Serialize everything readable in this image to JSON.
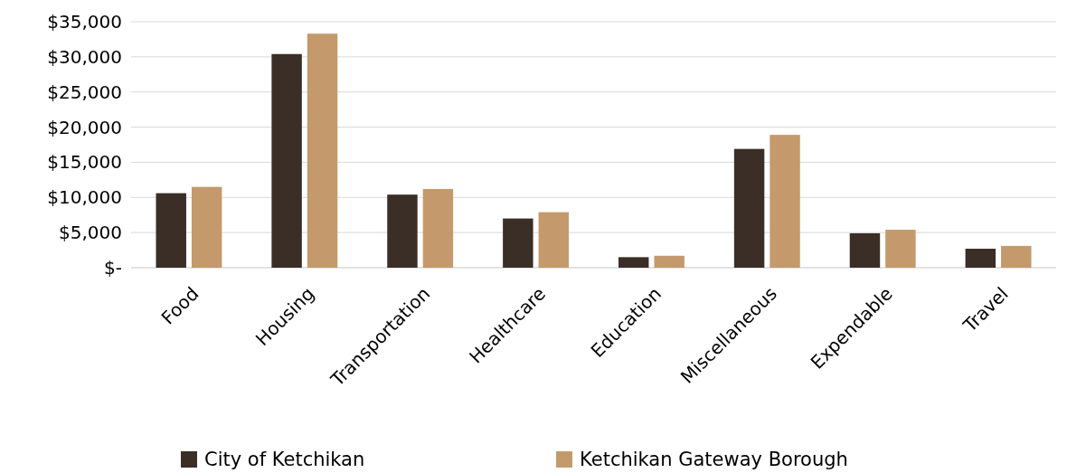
{
  "chart_data": {
    "type": "bar",
    "categories": [
      "Food",
      "Housing",
      "Transportation",
      "Healthcare",
      "Education",
      "Miscellaneous",
      "Expendable",
      "Travel"
    ],
    "series": [
      {
        "name": "City of Ketchikan",
        "color": "#3a2e27",
        "values": [
          10600,
          30400,
          10400,
          7000,
          1500,
          16900,
          4900,
          2700
        ]
      },
      {
        "name": "Ketchikan Gateway Borough",
        "color": "#c49a6c",
        "values": [
          11500,
          33300,
          11200,
          7900,
          1700,
          18900,
          5400,
          3100
        ]
      }
    ],
    "ylim": [
      0,
      35000
    ],
    "yticks": [
      {
        "value": 0,
        "label": "$-"
      },
      {
        "value": 5000,
        "label": "$5,000"
      },
      {
        "value": 10000,
        "label": "$10,000"
      },
      {
        "value": 15000,
        "label": "$15,000"
      },
      {
        "value": 20000,
        "label": "$20,000"
      },
      {
        "value": 25000,
        "label": "$25,000"
      },
      {
        "value": 30000,
        "label": "$30,000"
      },
      {
        "value": 35000,
        "label": "$35,000"
      }
    ],
    "grid": "y",
    "legend": "bottom"
  }
}
